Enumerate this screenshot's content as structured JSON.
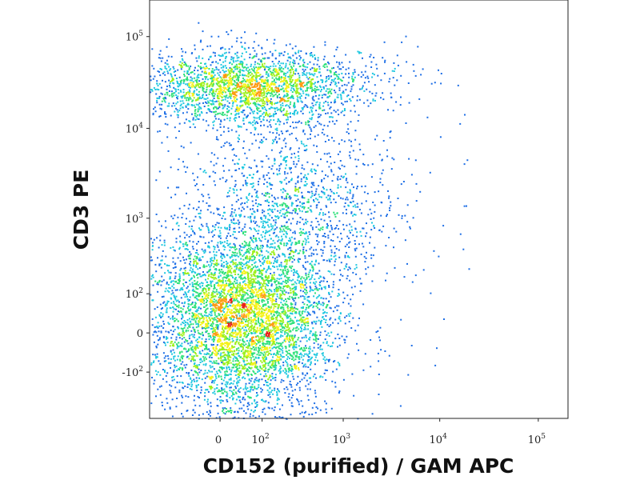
{
  "chart_data": {
    "type": "scatter",
    "subtype": "flow-cytometry density dot plot",
    "xlabel": "CD152 (purified) / GAM APC",
    "ylabel": "CD3 PE",
    "x_scale": "biexponential (logicle)",
    "y_scale": "biexponential (logicle)",
    "xlim": [
      -250,
      200000
    ],
    "ylim": [
      -450,
      250000
    ],
    "x_ticks": [
      {
        "value": 0,
        "base": "0",
        "exp": ""
      },
      {
        "value": 100,
        "base": "10",
        "exp": "2"
      },
      {
        "value": 1000,
        "base": "10",
        "exp": "3"
      },
      {
        "value": 10000,
        "base": "10",
        "exp": "4"
      },
      {
        "value": 100000,
        "base": "10",
        "exp": "5"
      }
    ],
    "y_ticks": [
      {
        "value": -100,
        "base": "-10",
        "exp": "2"
      },
      {
        "value": 0,
        "base": "0",
        "exp": ""
      },
      {
        "value": 100,
        "base": "10",
        "exp": "2"
      },
      {
        "value": 1000,
        "base": "10",
        "exp": "3"
      },
      {
        "value": 10000,
        "base": "10",
        "exp": "4"
      },
      {
        "value": 100000,
        "base": "10",
        "exp": "5"
      }
    ],
    "color_scale": [
      "#0a14c8",
      "#1e6fe6",
      "#20c8e0",
      "#2ee07a",
      "#9ef01e",
      "#f5f21a",
      "#ff9a12",
      "#e8201a"
    ],
    "grid": false,
    "populations": [
      {
        "center_x": 40,
        "center_y": 30,
        "spread_x_decades": 0.45,
        "spread_y_decades": 0.5,
        "relative_count": 0.6
      },
      {
        "center_x": 60,
        "center_y": 28000,
        "spread_x_decades": 0.55,
        "spread_y_decades": 0.2,
        "relative_count": 0.28
      },
      {
        "center_x": 300,
        "center_y": 1500,
        "spread_x_decades": 0.5,
        "spread_y_decades": 0.45,
        "relative_count": 0.12
      }
    ]
  }
}
